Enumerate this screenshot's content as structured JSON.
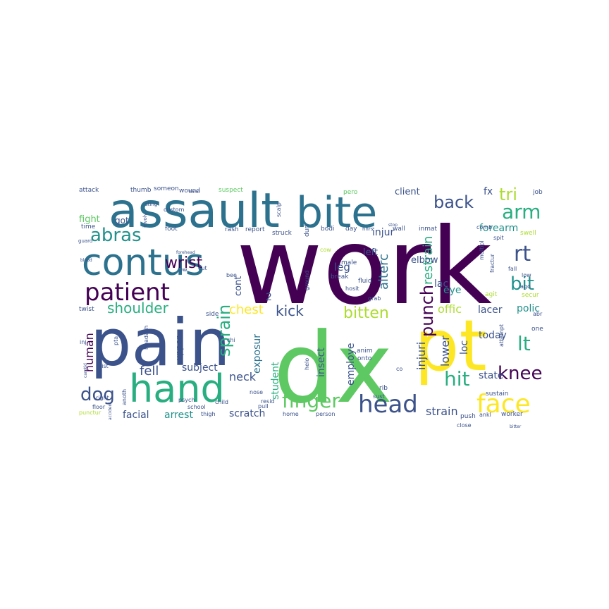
{
  "word_cloud": {
    "colors": {
      "purple": "#440154",
      "indigo": "#3b528b",
      "blue": "#2c728e",
      "teal": "#21918c",
      "seagreen": "#28ae80",
      "green": "#5ec962",
      "lime": "#addc30",
      "yellow": "#fde725"
    },
    "words": [
      {
        "text": "work",
        "c": "purple"
      },
      {
        "text": "dx",
        "c": "green"
      },
      {
        "text": "pain",
        "c": "indigo"
      },
      {
        "text": "pt",
        "c": "yellow"
      },
      {
        "text": "assault",
        "c": "blue"
      },
      {
        "text": "bite",
        "c": "blue"
      },
      {
        "text": "contus",
        "c": "blue"
      },
      {
        "text": "hand",
        "c": "seagreen"
      },
      {
        "text": "patient",
        "c": "purple"
      },
      {
        "text": "head",
        "c": "indigo"
      },
      {
        "text": "face",
        "c": "yellow"
      },
      {
        "text": "finger",
        "c": "green"
      },
      {
        "text": "hit",
        "c": "seagreen"
      },
      {
        "text": "arm",
        "c": "seagreen"
      },
      {
        "text": "knee",
        "c": "purple"
      },
      {
        "text": "dog",
        "c": "indigo"
      },
      {
        "text": "abras",
        "c": "teal"
      },
      {
        "text": "back",
        "c": "indigo"
      },
      {
        "text": "rt",
        "c": "indigo"
      },
      {
        "text": "lt",
        "c": "seagreen"
      },
      {
        "text": "bit",
        "c": "teal"
      },
      {
        "text": "tri",
        "c": "lime"
      },
      {
        "text": "wrist",
        "c": "purple"
      },
      {
        "text": "shoulder",
        "c": "seagreen"
      },
      {
        "text": "bitten",
        "c": "lime"
      },
      {
        "text": "punch",
        "c": "purple"
      },
      {
        "text": "sprain",
        "c": "seagreen"
      },
      {
        "text": "kick",
        "c": "indigo"
      },
      {
        "text": "chest",
        "c": "yellow"
      },
      {
        "text": "fell",
        "c": "indigo"
      },
      {
        "text": "subject",
        "c": "indigo"
      },
      {
        "text": "neck",
        "c": "indigo"
      },
      {
        "text": "human",
        "c": "purple"
      },
      {
        "text": "arrest",
        "c": "teal"
      },
      {
        "text": "facial",
        "c": "indigo"
      },
      {
        "text": "scratch",
        "c": "indigo"
      },
      {
        "text": "strain",
        "c": "indigo"
      },
      {
        "text": "restrain",
        "c": "seagreen"
      },
      {
        "text": "alterc",
        "c": "blue"
      },
      {
        "text": "injuri",
        "c": "indigo"
      },
      {
        "text": "injur",
        "c": "indigo"
      },
      {
        "text": "insect",
        "c": "indigo"
      },
      {
        "text": "employe",
        "c": "indigo"
      },
      {
        "text": "exposur",
        "c": "blue"
      },
      {
        "text": "student",
        "c": "seagreen"
      },
      {
        "text": "lower",
        "c": "indigo"
      },
      {
        "text": "offic",
        "c": "lime"
      },
      {
        "text": "lacer",
        "c": "indigo"
      },
      {
        "text": "forearm",
        "c": "teal"
      },
      {
        "text": "polic",
        "c": "teal"
      },
      {
        "text": "today",
        "c": "indigo"
      },
      {
        "text": "state",
        "c": "indigo"
      },
      {
        "text": "loc",
        "c": "indigo"
      },
      {
        "text": "elbow",
        "c": "indigo"
      },
      {
        "text": "leg",
        "c": "indigo"
      },
      {
        "text": "lac",
        "c": "indigo"
      },
      {
        "text": "eye",
        "c": "teal"
      },
      {
        "text": "left",
        "c": "indigo"
      },
      {
        "text": "client",
        "c": "indigo"
      },
      {
        "text": "fx",
        "c": "indigo"
      },
      {
        "text": "got",
        "c": "indigo"
      },
      {
        "text": "fight",
        "c": "green"
      },
      {
        "text": "cont",
        "c": "indigo"
      },
      {
        "text": "upper",
        "c": "indigo"
      },
      {
        "text": "2",
        "c": "indigo"
      },
      {
        "text": "attack",
        "c": "indigo"
      },
      {
        "text": "thumb",
        "c": "indigo"
      },
      {
        "text": "someon",
        "c": "indigo"
      },
      {
        "text": "wound",
        "c": "indigo"
      },
      {
        "text": "suspect",
        "c": "green"
      },
      {
        "text": "scalp",
        "c": "indigo"
      },
      {
        "text": "pero",
        "c": "green"
      },
      {
        "text": "job",
        "c": "indigo"
      },
      {
        "text": "time",
        "c": "indigo"
      },
      {
        "text": "foot",
        "c": "indigo"
      },
      {
        "text": "rash",
        "c": "indigo"
      },
      {
        "text": "report",
        "c": "indigo"
      },
      {
        "text": "struck",
        "c": "indigo"
      },
      {
        "text": "duri",
        "c": "indigo"
      },
      {
        "text": "bodi",
        "c": "indigo"
      },
      {
        "text": "day",
        "c": "indigo"
      },
      {
        "text": "wall",
        "c": "indigo"
      },
      {
        "text": "inmat",
        "c": "indigo"
      },
      {
        "text": "comb",
        "c": "indigo"
      },
      {
        "text": "swell",
        "c": "lime"
      },
      {
        "text": "spit",
        "c": "indigo"
      },
      {
        "text": "fluid",
        "c": "indigo"
      },
      {
        "text": "male",
        "c": "indigo"
      },
      {
        "text": "break",
        "c": "indigo"
      },
      {
        "text": "twist",
        "c": "indigo"
      },
      {
        "text": "side",
        "c": "indigo"
      },
      {
        "text": "anim",
        "c": "indigo"
      },
      {
        "text": "onto",
        "c": "indigo"
      },
      {
        "text": "helo",
        "c": "indigo"
      },
      {
        "text": "rib",
        "c": "indigo"
      },
      {
        "text": "sust",
        "c": "indigo"
      },
      {
        "text": "sustain",
        "c": "indigo"
      },
      {
        "text": "one",
        "c": "indigo"
      },
      {
        "text": "worker",
        "c": "indigo"
      },
      {
        "text": "ankl",
        "c": "indigo"
      },
      {
        "text": "close",
        "c": "indigo"
      },
      {
        "text": "push",
        "c": "indigo"
      },
      {
        "text": "agit",
        "c": "lime"
      },
      {
        "text": "secur",
        "c": "lime"
      },
      {
        "text": "abr",
        "c": "indigo"
      },
      {
        "text": "floor",
        "c": "indigo"
      },
      {
        "text": "right",
        "c": "indigo"
      },
      {
        "text": "home",
        "c": "indigo"
      },
      {
        "text": "person",
        "c": "indigo"
      },
      {
        "text": "thigh",
        "c": "indigo"
      },
      {
        "text": "grab",
        "c": "indigo"
      },
      {
        "text": "bee",
        "c": "indigo"
      },
      {
        "text": "pull",
        "c": "indigo"
      },
      {
        "text": "nose",
        "c": "indigo"
      },
      {
        "text": "psych",
        "c": "indigo"
      },
      {
        "text": "ground",
        "c": "indigo"
      },
      {
        "text": "hosit",
        "c": "indigo"
      },
      {
        "text": "low",
        "c": "indigo"
      },
      {
        "text": "custom",
        "c": "indigo"
      },
      {
        "text": "guard",
        "c": "indigo"
      },
      {
        "text": "punctur",
        "c": "lime"
      },
      {
        "text": "multipl",
        "c": "indigo"
      },
      {
        "text": "fractur",
        "c": "indigo"
      },
      {
        "text": "anoth",
        "c": "indigo"
      },
      {
        "text": "child",
        "c": "indigo"
      },
      {
        "text": "school",
        "c": "indigo"
      },
      {
        "text": "cut",
        "c": "indigo"
      },
      {
        "text": "pw",
        "c": "indigo"
      },
      {
        "text": "chi",
        "c": "indigo"
      },
      {
        "text": "pta",
        "c": "indigo"
      },
      {
        "text": "headach",
        "c": "indigo"
      },
      {
        "text": "cow",
        "c": "lime"
      },
      {
        "text": "co",
        "c": "indigo"
      },
      {
        "text": "stop",
        "c": "indigo"
      },
      {
        "text": "ago",
        "c": "indigo"
      },
      {
        "text": "fall",
        "c": "indigo"
      },
      {
        "text": "attempt",
        "c": "indigo"
      },
      {
        "text": "resid",
        "c": "indigo"
      },
      {
        "text": "inj",
        "c": "indigo"
      },
      {
        "text": "list",
        "c": "indigo"
      },
      {
        "text": "involv",
        "c": "indigo"
      },
      {
        "text": "sting",
        "c": "indigo"
      },
      {
        "text": "hnrs",
        "c": "indigo"
      },
      {
        "text": "hmm",
        "c": "indigo"
      },
      {
        "text": "forehead",
        "c": "indigo"
      },
      {
        "text": "bitter",
        "c": "indigo"
      },
      {
        "text": "carotid",
        "c": "indigo"
      },
      {
        "text": "accident",
        "c": "indigo"
      },
      {
        "text": "blood",
        "c": "indigo"
      }
    ]
  }
}
